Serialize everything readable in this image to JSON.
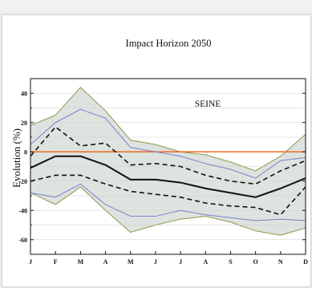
{
  "chart_data": {
    "type": "line",
    "title": "Impact   Horizon 2050",
    "ylabel": "Evolution (%)",
    "xlabel": "",
    "annotation": "SEINE",
    "categories": [
      "J",
      "F",
      "M",
      "A",
      "M",
      "J",
      "J",
      "A",
      "S",
      "O",
      "N",
      "D"
    ],
    "ylim": [
      -70,
      50
    ],
    "yticks": [
      40,
      20,
      0,
      -20,
      -40,
      -60
    ],
    "grid": "horizontal",
    "legend": "none",
    "band": {
      "upper": [
        18,
        25,
        44,
        28,
        8,
        5,
        0,
        -2,
        -7,
        -13,
        -3,
        12
      ],
      "lower": [
        -28,
        -36,
        -24,
        -40,
        -55,
        -50,
        -46,
        -44,
        -48,
        -54,
        -57,
        -52
      ],
      "fill": "#dde3df",
      "edge": "#8a9a4a"
    },
    "zero_line_color": "#f06a1e",
    "series": [
      {
        "values": [
          5,
          20,
          29,
          23,
          3,
          0,
          -3,
          -8,
          -12,
          -18,
          -6,
          -4
        ],
        "color": "#7b80cc",
        "style": "solid",
        "width": 1
      },
      {
        "values": [
          -3,
          17,
          4,
          6,
          -9,
          -8,
          -10,
          -16,
          -20,
          -22,
          -13,
          -6
        ],
        "color": "#111111",
        "style": "dashed",
        "width": 1.6
      },
      {
        "values": [
          -11,
          -3,
          -3,
          -9,
          -19,
          -19,
          -21,
          -25,
          -28,
          -31,
          -25,
          -18
        ],
        "color": "#111111",
        "style": "solid",
        "width": 2
      },
      {
        "values": [
          -20,
          -16,
          -16,
          -22,
          -27,
          -29,
          -31,
          -35,
          -37,
          -38,
          -43,
          -24
        ],
        "color": "#111111",
        "style": "dashed",
        "width": 1.6
      },
      {
        "values": [
          -28,
          -31,
          -22,
          -36,
          -44,
          -44,
          -40,
          -43,
          -45,
          -47,
          -46,
          -47
        ],
        "color": "#7b80cc",
        "style": "solid",
        "width": 1
      }
    ]
  }
}
